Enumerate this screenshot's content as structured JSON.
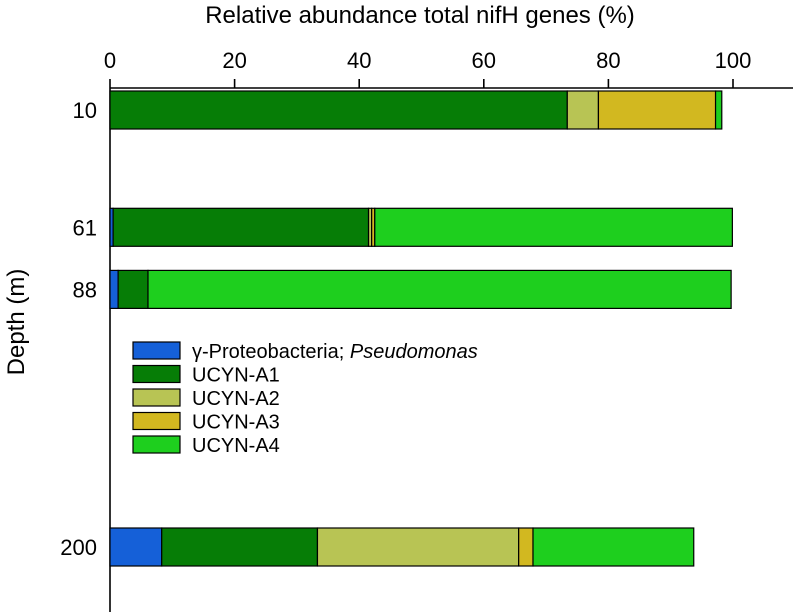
{
  "chart_data": {
    "type": "bar",
    "orientation": "horizontal",
    "stacked": true,
    "title": "",
    "xlabel": "Relative abundance total nifH genes (%)",
    "ylabel": "Depth (m)",
    "xlim": [
      0,
      108
    ],
    "ylim": [
      0,
      225
    ],
    "x_ticks": [
      0,
      20,
      40,
      60,
      80,
      100
    ],
    "x_axis_position": "top",
    "y_inverted": true,
    "y_ticks": [
      10,
      61,
      88,
      200
    ],
    "categories": [
      "10",
      "61",
      "88",
      "200"
    ],
    "depths": [
      10,
      61,
      88,
      200
    ],
    "grid": false,
    "legend_position": "middle-left",
    "legend": [
      {
        "prefix": "γ-Proteobacteria; ",
        "italic": "Pseudomonas"
      },
      {
        "prefix": "UCYN-A1",
        "italic": ""
      },
      {
        "prefix": "UCYN-A2",
        "italic": ""
      },
      {
        "prefix": "UCYN-A3",
        "italic": ""
      },
      {
        "prefix": "UCYN-A4",
        "italic": ""
      }
    ],
    "series": [
      {
        "name": "γ-Proteobacteria; Pseudomonas",
        "color": "#1560d8",
        "values": [
          0,
          0.5,
          1.3,
          8.3
        ]
      },
      {
        "name": "UCYN-A1",
        "color": "#067d06",
        "values": [
          73.4,
          41.0,
          4.8,
          25.0
        ]
      },
      {
        "name": "UCYN-A2",
        "color": "#b8c454",
        "values": [
          5.0,
          0.5,
          0,
          32.3
        ]
      },
      {
        "name": "UCYN-A3",
        "color": "#d2b820",
        "values": [
          18.8,
          0.5,
          0,
          2.3
        ]
      },
      {
        "name": "UCYN-A4",
        "color": "#1ecf1e",
        "values": [
          1.0,
          57.4,
          93.6,
          25.8
        ]
      }
    ]
  }
}
